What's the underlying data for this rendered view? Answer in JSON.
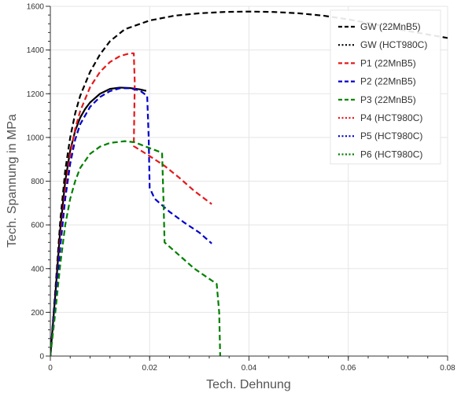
{
  "chart_data": {
    "type": "line",
    "xlabel": "Tech. Dehnung",
    "ylabel": "Tech. Spannung in MPa",
    "xlim": [
      0,
      0.08
    ],
    "ylim": [
      0,
      1600
    ],
    "x_ticks": [
      0,
      0.02,
      0.04,
      0.06,
      0.08
    ],
    "x_tick_labels": [
      "0",
      "0.02",
      "0.04",
      "0.06",
      "0.08"
    ],
    "y_ticks": [
      0,
      200,
      400,
      600,
      800,
      1000,
      1200,
      1400,
      1600
    ],
    "y_tick_labels": [
      "0",
      "200",
      "400",
      "600",
      "800",
      "1000",
      "1200",
      "1400",
      "1600"
    ],
    "grid": true,
    "legend_position": "top-right",
    "series": [
      {
        "name": "GW (22MnB5)",
        "color": "#000000",
        "dash": "dashed",
        "in_legend": true,
        "points": [
          [
            0,
            0
          ],
          [
            0.001,
            300
          ],
          [
            0.002,
            620
          ],
          [
            0.003,
            850
          ],
          [
            0.004,
            1000
          ],
          [
            0.005,
            1110
          ],
          [
            0.006,
            1190
          ],
          [
            0.008,
            1300
          ],
          [
            0.01,
            1380
          ],
          [
            0.012,
            1440
          ],
          [
            0.015,
            1495
          ],
          [
            0.02,
            1535
          ],
          [
            0.025,
            1557
          ],
          [
            0.03,
            1568
          ],
          [
            0.035,
            1574
          ],
          [
            0.04,
            1576
          ],
          [
            0.045,
            1574
          ],
          [
            0.05,
            1568
          ],
          [
            0.055,
            1557
          ],
          [
            0.06,
            1540
          ],
          [
            0.065,
            1520
          ],
          [
            0.07,
            1495
          ],
          [
            0.075,
            1475
          ],
          [
            0.08,
            1455
          ]
        ]
      },
      {
        "name": "GW  (HCT980C)",
        "color": "#000000",
        "dash": "dotted",
        "in_legend": true,
        "points": []
      },
      {
        "name": "",
        "color": "#000000",
        "dash": "solid",
        "in_legend": false,
        "points": [
          [
            0,
            0
          ],
          [
            0.001,
            280
          ],
          [
            0.002,
            580
          ],
          [
            0.003,
            800
          ],
          [
            0.004,
            940
          ],
          [
            0.005,
            1030
          ],
          [
            0.006,
            1090
          ],
          [
            0.007,
            1130
          ],
          [
            0.008,
            1160
          ],
          [
            0.01,
            1200
          ],
          [
            0.012,
            1222
          ],
          [
            0.014,
            1228
          ],
          [
            0.016,
            1226
          ],
          [
            0.018,
            1220
          ],
          [
            0.0193,
            1213
          ]
        ]
      },
      {
        "name": "P1 (22MnB5)",
        "color": "#e41a1c",
        "dash": "dashed",
        "in_legend": true,
        "points": [
          [
            0,
            0
          ],
          [
            0.001,
            250
          ],
          [
            0.002,
            530
          ],
          [
            0.003,
            760
          ],
          [
            0.004,
            920
          ],
          [
            0.005,
            1040
          ],
          [
            0.006,
            1120
          ],
          [
            0.008,
            1230
          ],
          [
            0.01,
            1300
          ],
          [
            0.012,
            1345
          ],
          [
            0.014,
            1372
          ],
          [
            0.016,
            1385
          ],
          [
            0.0168,
            1385
          ],
          [
            0.017,
            1250
          ],
          [
            0.0168,
            960
          ],
          [
            0.02,
            915
          ],
          [
            0.023,
            870
          ],
          [
            0.026,
            815
          ],
          [
            0.029,
            755
          ],
          [
            0.0325,
            695
          ]
        ]
      },
      {
        "name": "P2 (22MnB5)",
        "color": "#0000cc",
        "dash": "dashed",
        "in_legend": true,
        "points": [
          [
            0,
            0
          ],
          [
            0.001,
            240
          ],
          [
            0.002,
            500
          ],
          [
            0.003,
            720
          ],
          [
            0.004,
            880
          ],
          [
            0.005,
            990
          ],
          [
            0.006,
            1060
          ],
          [
            0.008,
            1140
          ],
          [
            0.01,
            1185
          ],
          [
            0.012,
            1212
          ],
          [
            0.014,
            1225
          ],
          [
            0.016,
            1225
          ],
          [
            0.018,
            1215
          ],
          [
            0.0195,
            1190
          ],
          [
            0.0198,
            1000
          ],
          [
            0.02,
            770
          ],
          [
            0.021,
            720
          ],
          [
            0.024,
            660
          ],
          [
            0.027,
            610
          ],
          [
            0.03,
            565
          ],
          [
            0.0325,
            515
          ]
        ]
      },
      {
        "name": "P3 (22MnB5)",
        "color": "#008000",
        "dash": "dashed",
        "in_legend": true,
        "points": [
          [
            0,
            0
          ],
          [
            0.001,
            200
          ],
          [
            0.002,
            420
          ],
          [
            0.003,
            600
          ],
          [
            0.004,
            720
          ],
          [
            0.005,
            800
          ],
          [
            0.006,
            860
          ],
          [
            0.008,
            925
          ],
          [
            0.01,
            958
          ],
          [
            0.012,
            975
          ],
          [
            0.015,
            983
          ],
          [
            0.017,
            978
          ],
          [
            0.019,
            960
          ],
          [
            0.0225,
            930
          ],
          [
            0.0228,
            700
          ],
          [
            0.023,
            520
          ],
          [
            0.026,
            460
          ],
          [
            0.029,
            400
          ],
          [
            0.0335,
            330
          ],
          [
            0.034,
            200
          ],
          [
            0.0342,
            0
          ]
        ]
      },
      {
        "name": "P4 (HCT980C)",
        "color": "#e41a1c",
        "dash": "dotted",
        "in_legend": true,
        "points": []
      },
      {
        "name": "P5 (HCT980C)",
        "color": "#0000cc",
        "dash": "dotted",
        "in_legend": true,
        "points": []
      },
      {
        "name": "P6 (HCT980C)",
        "color": "#008000",
        "dash": "dotted",
        "in_legend": true,
        "points": []
      }
    ]
  }
}
